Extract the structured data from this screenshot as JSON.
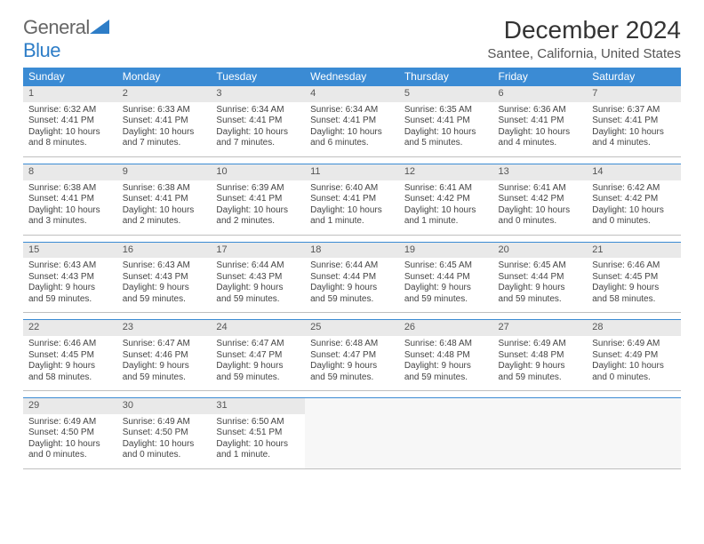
{
  "logo": {
    "text1": "General",
    "text2": "Blue"
  },
  "title": "December 2024",
  "location": "Santee, California, United States",
  "colors": {
    "header_bg": "#3b8bd4",
    "header_text": "#ffffff",
    "daynum_bg": "#e9e9e9",
    "row_top_border": "#3b8bd4",
    "row_bottom_border": "#bfbfbf",
    "logo_blue": "#2d7dc7",
    "logo_gray": "#666666"
  },
  "headers": [
    "Sunday",
    "Monday",
    "Tuesday",
    "Wednesday",
    "Thursday",
    "Friday",
    "Saturday"
  ],
  "weeks": [
    [
      {
        "n": "1",
        "sr": "6:32 AM",
        "ss": "4:41 PM",
        "dl": "10 hours and 8 minutes."
      },
      {
        "n": "2",
        "sr": "6:33 AM",
        "ss": "4:41 PM",
        "dl": "10 hours and 7 minutes."
      },
      {
        "n": "3",
        "sr": "6:34 AM",
        "ss": "4:41 PM",
        "dl": "10 hours and 7 minutes."
      },
      {
        "n": "4",
        "sr": "6:34 AM",
        "ss": "4:41 PM",
        "dl": "10 hours and 6 minutes."
      },
      {
        "n": "5",
        "sr": "6:35 AM",
        "ss": "4:41 PM",
        "dl": "10 hours and 5 minutes."
      },
      {
        "n": "6",
        "sr": "6:36 AM",
        "ss": "4:41 PM",
        "dl": "10 hours and 4 minutes."
      },
      {
        "n": "7",
        "sr": "6:37 AM",
        "ss": "4:41 PM",
        "dl": "10 hours and 4 minutes."
      }
    ],
    [
      {
        "n": "8",
        "sr": "6:38 AM",
        "ss": "4:41 PM",
        "dl": "10 hours and 3 minutes."
      },
      {
        "n": "9",
        "sr": "6:38 AM",
        "ss": "4:41 PM",
        "dl": "10 hours and 2 minutes."
      },
      {
        "n": "10",
        "sr": "6:39 AM",
        "ss": "4:41 PM",
        "dl": "10 hours and 2 minutes."
      },
      {
        "n": "11",
        "sr": "6:40 AM",
        "ss": "4:41 PM",
        "dl": "10 hours and 1 minute."
      },
      {
        "n": "12",
        "sr": "6:41 AM",
        "ss": "4:42 PM",
        "dl": "10 hours and 1 minute."
      },
      {
        "n": "13",
        "sr": "6:41 AM",
        "ss": "4:42 PM",
        "dl": "10 hours and 0 minutes."
      },
      {
        "n": "14",
        "sr": "6:42 AM",
        "ss": "4:42 PM",
        "dl": "10 hours and 0 minutes."
      }
    ],
    [
      {
        "n": "15",
        "sr": "6:43 AM",
        "ss": "4:43 PM",
        "dl": "9 hours and 59 minutes."
      },
      {
        "n": "16",
        "sr": "6:43 AM",
        "ss": "4:43 PM",
        "dl": "9 hours and 59 minutes."
      },
      {
        "n": "17",
        "sr": "6:44 AM",
        "ss": "4:43 PM",
        "dl": "9 hours and 59 minutes."
      },
      {
        "n": "18",
        "sr": "6:44 AM",
        "ss": "4:44 PM",
        "dl": "9 hours and 59 minutes."
      },
      {
        "n": "19",
        "sr": "6:45 AM",
        "ss": "4:44 PM",
        "dl": "9 hours and 59 minutes."
      },
      {
        "n": "20",
        "sr": "6:45 AM",
        "ss": "4:44 PM",
        "dl": "9 hours and 59 minutes."
      },
      {
        "n": "21",
        "sr": "6:46 AM",
        "ss": "4:45 PM",
        "dl": "9 hours and 58 minutes."
      }
    ],
    [
      {
        "n": "22",
        "sr": "6:46 AM",
        "ss": "4:45 PM",
        "dl": "9 hours and 58 minutes."
      },
      {
        "n": "23",
        "sr": "6:47 AM",
        "ss": "4:46 PM",
        "dl": "9 hours and 59 minutes."
      },
      {
        "n": "24",
        "sr": "6:47 AM",
        "ss": "4:47 PM",
        "dl": "9 hours and 59 minutes."
      },
      {
        "n": "25",
        "sr": "6:48 AM",
        "ss": "4:47 PM",
        "dl": "9 hours and 59 minutes."
      },
      {
        "n": "26",
        "sr": "6:48 AM",
        "ss": "4:48 PM",
        "dl": "9 hours and 59 minutes."
      },
      {
        "n": "27",
        "sr": "6:49 AM",
        "ss": "4:48 PM",
        "dl": "9 hours and 59 minutes."
      },
      {
        "n": "28",
        "sr": "6:49 AM",
        "ss": "4:49 PM",
        "dl": "10 hours and 0 minutes."
      }
    ],
    [
      {
        "n": "29",
        "sr": "6:49 AM",
        "ss": "4:50 PM",
        "dl": "10 hours and 0 minutes."
      },
      {
        "n": "30",
        "sr": "6:49 AM",
        "ss": "4:50 PM",
        "dl": "10 hours and 0 minutes."
      },
      {
        "n": "31",
        "sr": "6:50 AM",
        "ss": "4:51 PM",
        "dl": "10 hours and 1 minute."
      },
      null,
      null,
      null,
      null
    ]
  ],
  "labels": {
    "sunrise": "Sunrise:",
    "sunset": "Sunset:",
    "daylight": "Daylight:"
  }
}
